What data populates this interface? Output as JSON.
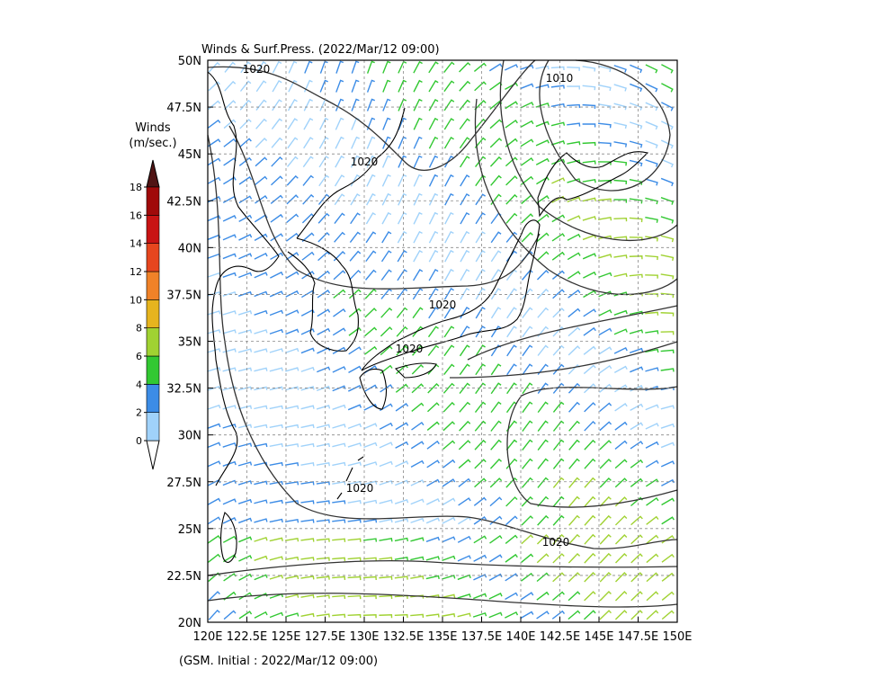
{
  "title": "Winds & Surf.Press. (2022/Mar/12 09:00)",
  "footer": "(GSM. Initial : 2022/Mar/12 09:00)",
  "map": {
    "lon_range": [
      120,
      150
    ],
    "lat_range": [
      20,
      50
    ],
    "lon_ticks": [
      {
        "value": 120,
        "label": "120E"
      },
      {
        "value": 122.5,
        "label": "122.5E"
      },
      {
        "value": 125,
        "label": "125E"
      },
      {
        "value": 127.5,
        "label": "127.5E"
      },
      {
        "value": 130,
        "label": "130E"
      },
      {
        "value": 132.5,
        "label": "132.5E"
      },
      {
        "value": 135,
        "label": "135E"
      },
      {
        "value": 137.5,
        "label": "137.5E"
      },
      {
        "value": 140,
        "label": "140E"
      },
      {
        "value": 142.5,
        "label": "142.5E"
      },
      {
        "value": 145,
        "label": "145E"
      },
      {
        "value": 147.5,
        "label": "147.5E"
      },
      {
        "value": 150,
        "label": "150E"
      }
    ],
    "lat_ticks": [
      {
        "value": 20,
        "label": "20N"
      },
      {
        "value": 22.5,
        "label": "22.5N"
      },
      {
        "value": 25,
        "label": "25N"
      },
      {
        "value": 27.5,
        "label": "27.5N"
      },
      {
        "value": 30,
        "label": "30N"
      },
      {
        "value": 32.5,
        "label": "32.5N"
      },
      {
        "value": 35,
        "label": "35N"
      },
      {
        "value": 37.5,
        "label": "37.5N"
      },
      {
        "value": 40,
        "label": "40N"
      },
      {
        "value": 42.5,
        "label": "42.5N"
      },
      {
        "value": 45,
        "label": "45N"
      },
      {
        "value": 47.5,
        "label": "47.5N"
      },
      {
        "value": 50,
        "label": "50N"
      }
    ],
    "isobar_labels": [
      "1020",
      "1010",
      "1020",
      "1020",
      "1020",
      "1020",
      "1020"
    ]
  },
  "colorbar": {
    "title_lines": [
      "Winds",
      "(m/sec.)"
    ],
    "levels": [
      0,
      2,
      4,
      6,
      8,
      10,
      12,
      14,
      16,
      18
    ],
    "under_color": "#ffffff",
    "band_colors": [
      "#a0d2fa",
      "#3c8ce6",
      "#32c832",
      "#a0d232",
      "#e6b41e",
      "#f08228",
      "#e6461e",
      "#c81414",
      "#a00a0a"
    ],
    "over_color": "#501414"
  }
}
